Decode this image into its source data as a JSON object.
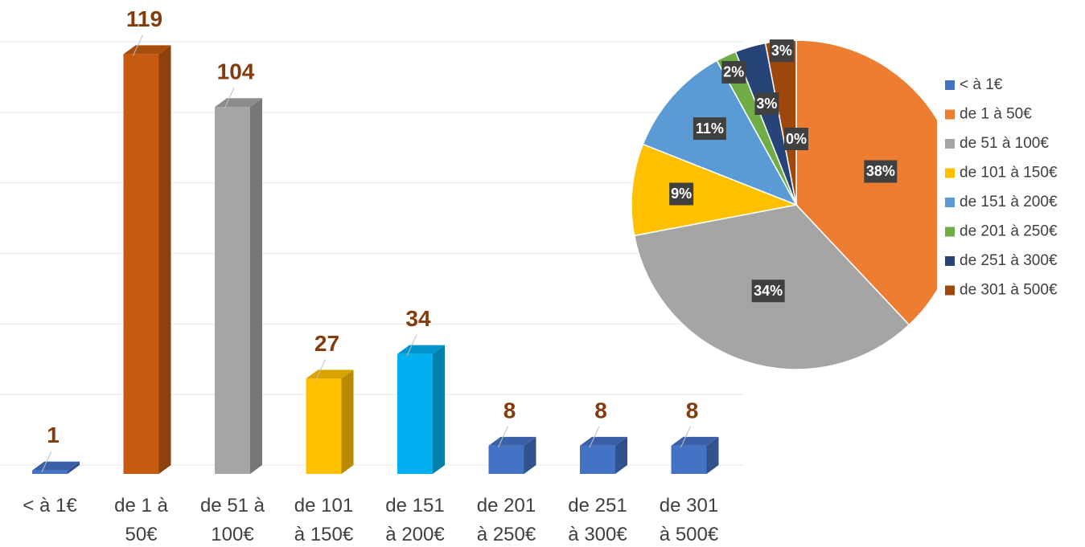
{
  "chart_data": [
    {
      "type": "bar3d",
      "categories": [
        "< à 1€",
        "de 1 à 50€",
        "de 51 à 100€",
        "de 101 à 150€",
        "de 151 à 200€",
        "de 201 à 250€",
        "de 251 à 300€",
        "de 301 à 500€"
      ],
      "values": [
        1,
        119,
        104,
        27,
        34,
        8,
        8,
        8
      ],
      "colors": [
        "#4472c4",
        "#c55a11",
        "#a5a5a5",
        "#ffc000",
        "#00b0f0",
        "#4472c4",
        "#4472c4",
        "#4472c4"
      ],
      "ylim": [
        0,
        120
      ],
      "yticks": [
        0,
        20,
        40,
        60,
        80,
        100,
        120
      ],
      "grid": true
    },
    {
      "type": "pie",
      "categories": [
        "< à 1€",
        "de 1 à 50€",
        "de 51 à 100€",
        "de 101 à 150€",
        "de 151 à 200€",
        "de 201 à 250€",
        "de 251 à 300€",
        "de 301 à 500€"
      ],
      "values": [
        0,
        38,
        34,
        9,
        11,
        2,
        3,
        3
      ],
      "value_labels": [
        "0%",
        "38%",
        "34%",
        "9%",
        "11%",
        "2%",
        "3%",
        "3%"
      ],
      "colors": [
        "#4472c4",
        "#ed7d31",
        "#a5a5a5",
        "#ffc000",
        "#5b9bd5",
        "#70ad47",
        "#264478",
        "#9e480e"
      ],
      "legend": "right"
    }
  ]
}
